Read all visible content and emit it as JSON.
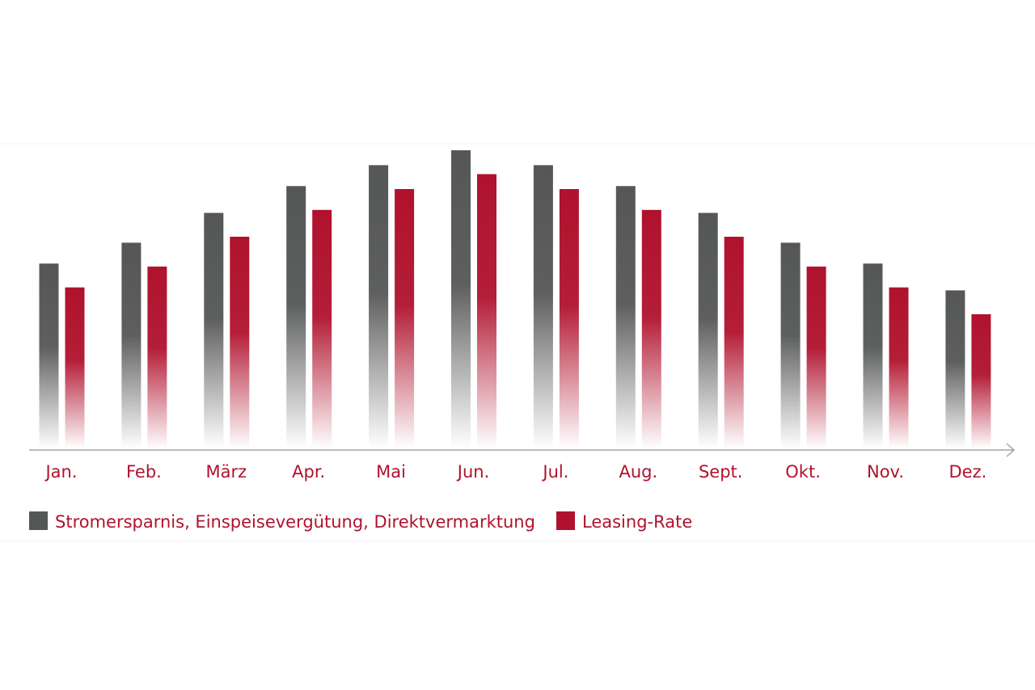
{
  "chart_data": {
    "type": "bar",
    "title": "",
    "xlabel": "",
    "ylabel": "",
    "ylim": [
      0,
      100
    ],
    "grid": false,
    "legend_position": "bottom-left",
    "categories": [
      "Jan.",
      "Feb.",
      "März",
      "Apr.",
      "Mai",
      "Jun.",
      "Jul.",
      "Aug.",
      "Sept.",
      "Okt.",
      "Nov.",
      "Dez."
    ],
    "series": [
      {
        "name": "Stromersparnis, Einspeisevergütung, Direktvermarktung",
        "color": "#555756",
        "values": [
          62,
          69,
          79,
          88,
          95,
          100,
          95,
          88,
          79,
          69,
          62,
          53
        ]
      },
      {
        "name": "Leasing-Rate",
        "color": "#b0122d",
        "values": [
          54,
          61,
          71,
          80,
          87,
          92,
          87,
          80,
          71,
          61,
          54,
          45
        ]
      }
    ]
  },
  "colors": {
    "label_text": "#b0122d",
    "axis": "#a3a3a3",
    "frame": "#f1f1f1"
  }
}
